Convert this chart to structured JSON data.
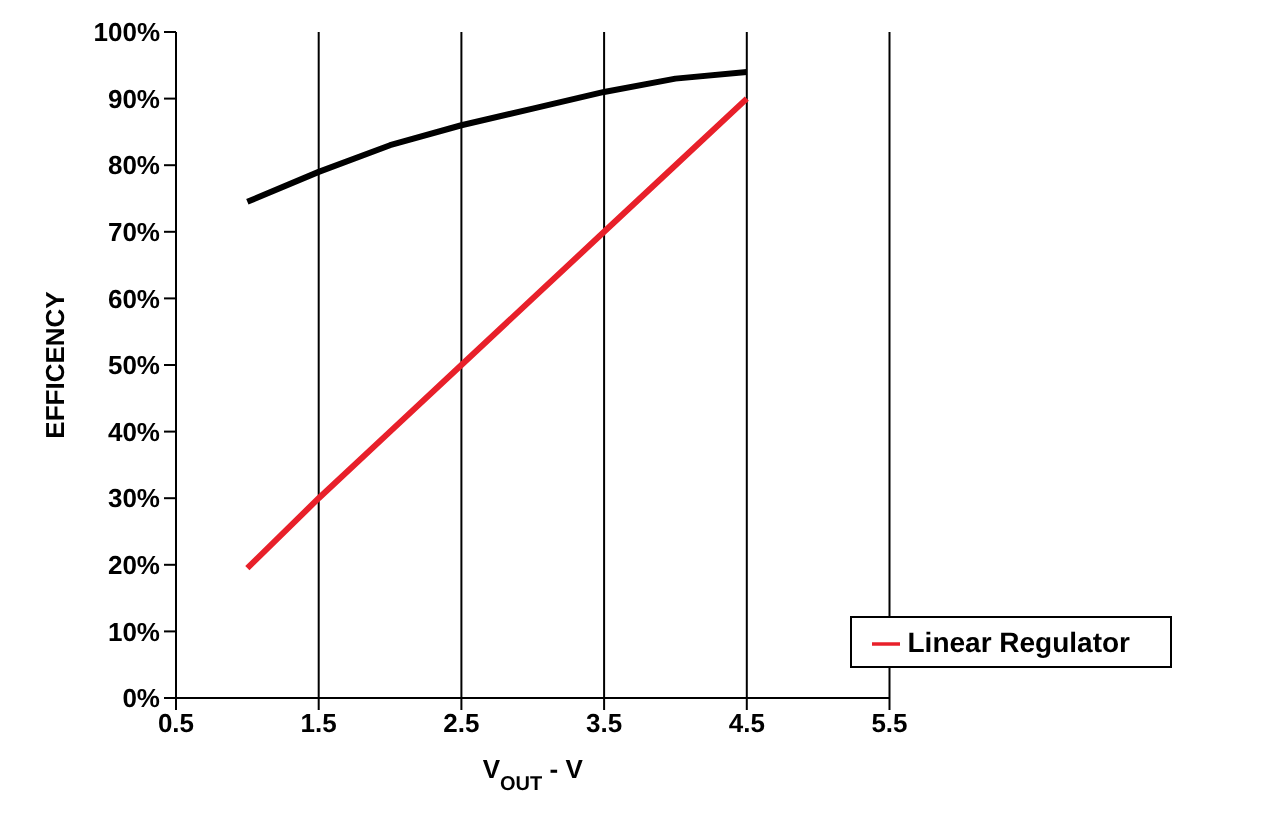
{
  "chart_data": {
    "type": "line",
    "xlabel": "V$_{OUT}$ - V",
    "ylabel": "EFFICENCY",
    "xlim": [
      0.5,
      5.5
    ],
    "xticks": [
      0.5,
      1.5,
      2.5,
      3.5,
      4.5,
      5.5
    ],
    "ylim": [
      0,
      100
    ],
    "yticks": [
      {
        "value": 0,
        "label": "0%"
      },
      {
        "value": 10,
        "label": "10%"
      },
      {
        "value": 20,
        "label": "20%"
      },
      {
        "value": 30,
        "label": "30%"
      },
      {
        "value": 40,
        "label": "40%"
      },
      {
        "value": 50,
        "label": "50%"
      },
      {
        "value": 60,
        "label": "60%"
      },
      {
        "value": 70,
        "label": "70%"
      },
      {
        "value": 80,
        "label": "80%"
      },
      {
        "value": 90,
        "label": "90%"
      },
      {
        "value": 100,
        "label": "100%"
      }
    ],
    "grid": "x",
    "legend": "bottom right",
    "marker": "none",
    "line_style": "solid",
    "series": [
      {
        "name": "Linear Regulator",
        "color": "#e8202a",
        "x": [
          1,
          1.5,
          2,
          2.5,
          3,
          3.5,
          4,
          4.5
        ],
        "values": [
          19.5,
          30,
          40,
          50,
          60,
          70,
          80,
          90
        ]
      },
      {
        "color": "#000000",
        "x": [
          1,
          1.5,
          2,
          2.5,
          3,
          3.5,
          4,
          4.5
        ],
        "values": [
          74.5,
          79,
          83,
          86,
          88.5,
          91,
          93,
          94
        ]
      }
    ]
  }
}
